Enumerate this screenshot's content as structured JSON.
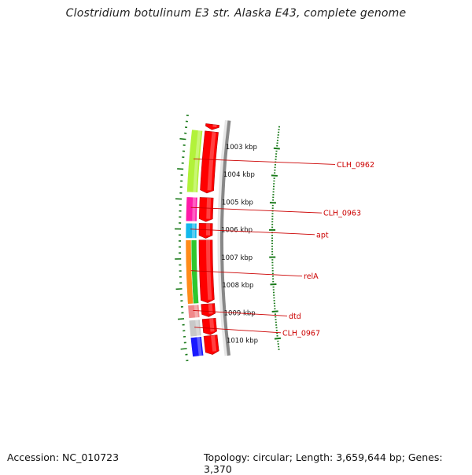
{
  "title": "Clostridium botulinum E3 str. Alaska E43, complete genome",
  "accession": "Accession: NC_010723",
  "topology_summary": "Topology: circular; Length: 3,659,644 bp; Genes: 3,370",
  "ruler": {
    "unit": "kbp",
    "labels": [
      "1003 kbp",
      "1004 kbp",
      "1005 kbp",
      "1006 kbp",
      "1007 kbp",
      "1008 kbp",
      "1009 kbp",
      "1010 kbp"
    ],
    "tick_color": "#1a7a1a",
    "backbone_color": "#888888"
  },
  "tracks": {
    "forward_color": "#ff0000",
    "genes": [
      {
        "label": "CLH_0962",
        "color": "#b2f23a",
        "start_kbp": 1002.65,
        "end_kbp": 1004.76
      },
      {
        "label": "CLH_0963",
        "color": "#ff1aa8",
        "start_kbp": 1004.92,
        "end_kbp": 1005.74
      },
      {
        "label": "apt",
        "color": "#13b8ec",
        "start_kbp": 1005.8,
        "end_kbp": 1006.31
      },
      {
        "label": "relA",
        "color_a": "#2ec72e",
        "color_b": "#ff8c1a",
        "start_kbp": 1006.37,
        "end_kbp": 1008.52
      },
      {
        "label": "dtd",
        "color": "#f0888a",
        "start_kbp": 1008.56,
        "end_kbp": 1009.0
      },
      {
        "label": "CLH_0967",
        "color": "#c8c8c8",
        "start_kbp": 1009.07,
        "end_kbp": 1009.62
      },
      {
        "label": "",
        "color": "#1a1aff",
        "start_kbp": 1009.65,
        "end_kbp": 1010.3
      }
    ],
    "forward_segments": [
      {
        "start_kbp": 1002.4,
        "end_kbp": 1002.58
      },
      {
        "start_kbp": 1002.65,
        "end_kbp": 1004.76
      },
      {
        "start_kbp": 1004.92,
        "end_kbp": 1005.74
      },
      {
        "start_kbp": 1005.8,
        "end_kbp": 1006.31
      },
      {
        "start_kbp": 1006.37,
        "end_kbp": 1008.52
      },
      {
        "start_kbp": 1008.56,
        "end_kbp": 1009.0
      },
      {
        "start_kbp": 1009.07,
        "end_kbp": 1009.62
      },
      {
        "start_kbp": 1009.65,
        "end_kbp": 1010.3
      }
    ]
  }
}
